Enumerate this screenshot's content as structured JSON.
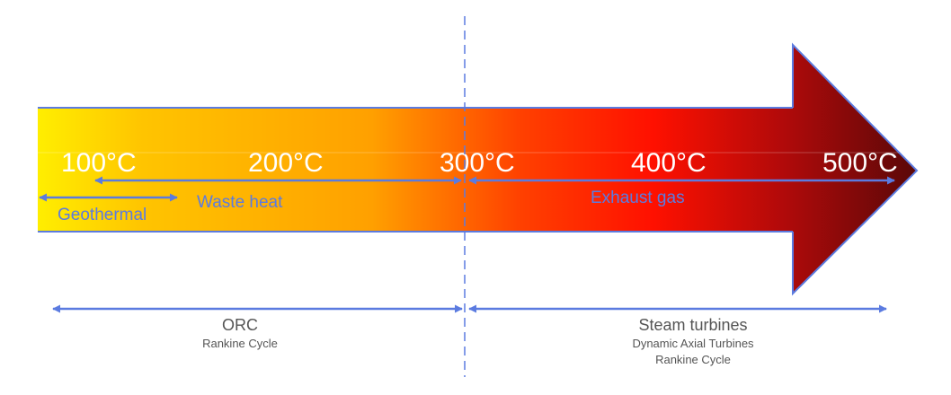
{
  "temperatures": [
    "100°C",
    "200°C",
    "300°C",
    "400°C",
    "500°C"
  ],
  "ranges": {
    "geothermal": "Geothermal",
    "waste_heat": "Waste heat",
    "exhaust_gas": "Exhaust gas"
  },
  "technologies": {
    "orc": {
      "title": "ORC",
      "subtitle": "Rankine Cycle"
    },
    "steam": {
      "title": "Steam turbines",
      "subtitle_1": "Dynamic Axial Turbines",
      "subtitle_2": "Rankine Cycle"
    }
  },
  "colors": {
    "gradient_start": "#ffee00",
    "gradient_mid_1": "#ffa500",
    "gradient_mid_2": "#ff1a00",
    "gradient_end": "#5a0808",
    "outline": "#5b7be0",
    "range_text": "#5b7be0",
    "bottom_text": "#555555",
    "temperature_text": "#ffffff"
  }
}
